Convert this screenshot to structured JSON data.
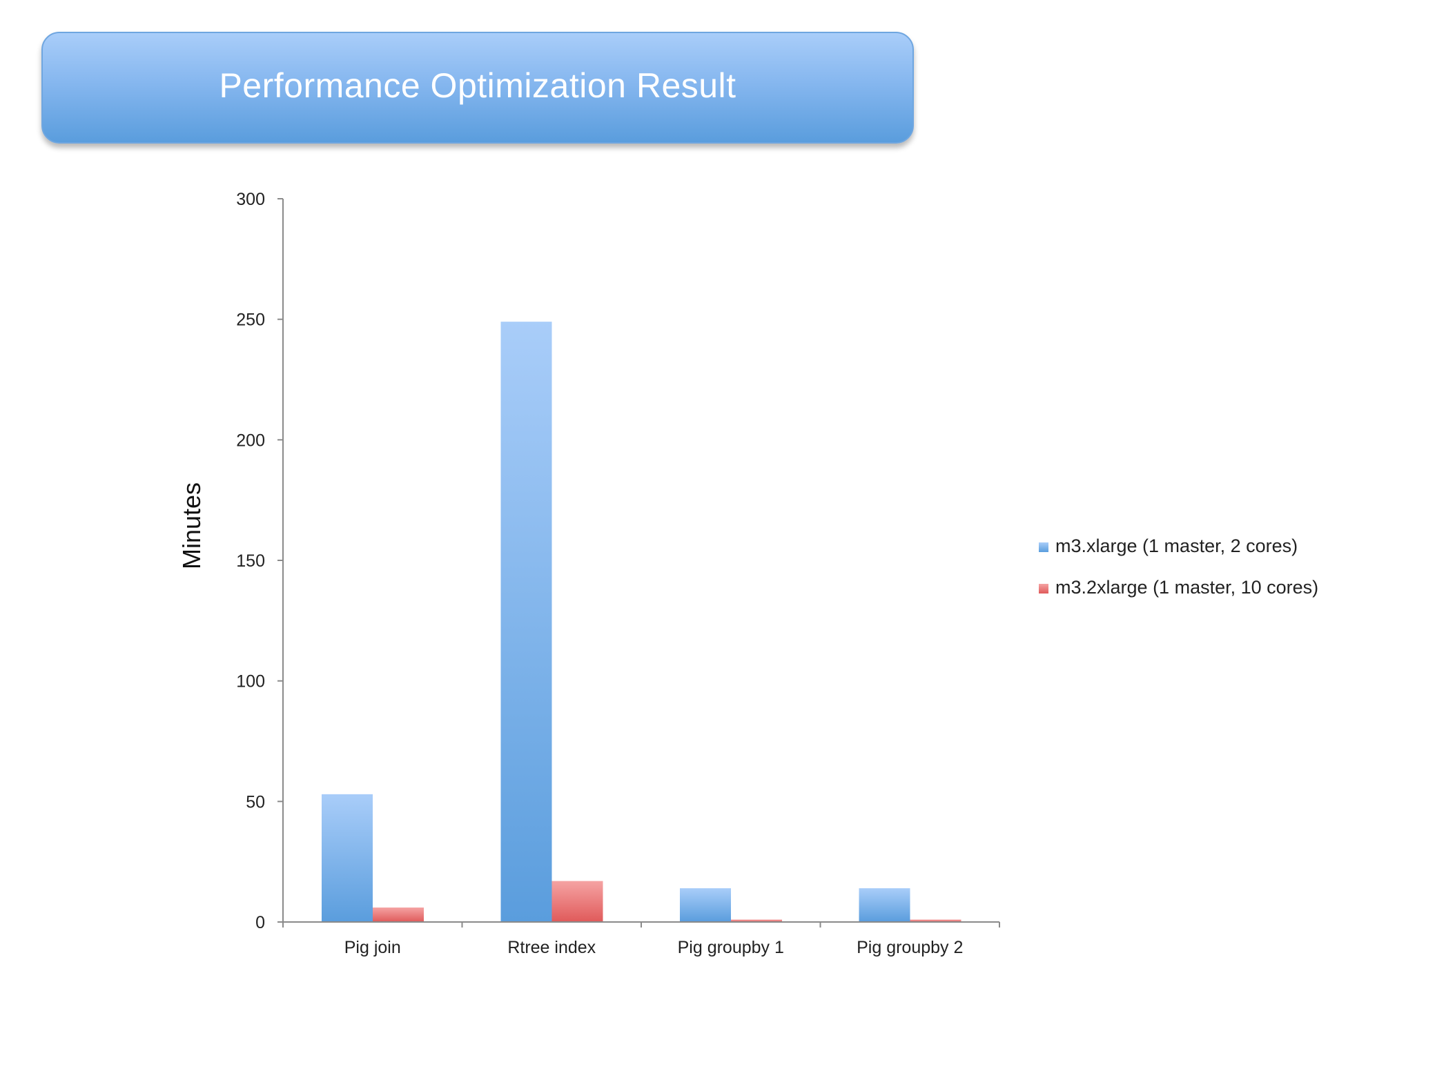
{
  "chart_data": {
    "type": "bar",
    "title": "Performance Optimization Result",
    "xlabel": "",
    "ylabel": "Minutes",
    "categories": [
      "Pig join",
      "Rtree index",
      "Pig groupby 1",
      "Pig groupby 2"
    ],
    "series": [
      {
        "name": "m3.xlarge (1 master, 2 cores)",
        "values": [
          53,
          249,
          14,
          14
        ],
        "color": "#5a9ddd",
        "color_light": "#a9cdf9"
      },
      {
        "name": "m3.2xlarge (1 master, 10 cores)",
        "values": [
          6,
          17,
          1,
          1
        ],
        "color": "#e05a5a",
        "color_light": "#f5a3a3"
      }
    ],
    "ylim": [
      0,
      300
    ],
    "yticks": [
      0,
      50,
      100,
      150,
      200,
      250,
      300
    ],
    "grid": false,
    "legend_position": "right"
  }
}
